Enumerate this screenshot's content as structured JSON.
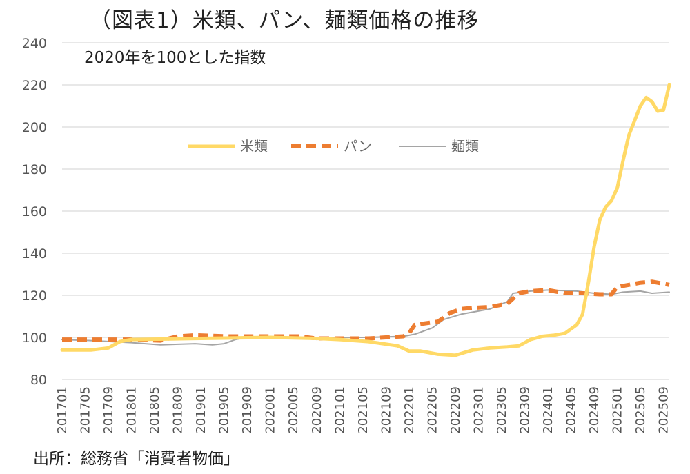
{
  "chart_data": {
    "type": "line",
    "title": "（図表1）米類、パン、麺類価格の推移",
    "subtitle": "2020年を100とした指数",
    "source": "出所：総務省「消費者物価」",
    "ylim": [
      80,
      240
    ],
    "yticks": [
      80,
      100,
      120,
      140,
      160,
      180,
      200,
      220,
      240
    ],
    "grid": "horizontal",
    "legend_position": "top-center",
    "x_start": "2017-01",
    "x_end": "2025-10",
    "xtick_labels": [
      "201701",
      "201705",
      "201709",
      "201801",
      "201805",
      "201809",
      "201901",
      "201905",
      "201909",
      "202001",
      "202005",
      "202009",
      "202101",
      "202105",
      "202109",
      "202201",
      "202205",
      "202209",
      "202301",
      "202305",
      "202309",
      "202401",
      "202405",
      "202409",
      "202501",
      "202505",
      "202509"
    ],
    "series": [
      {
        "name": "米類",
        "color": "#FFD966",
        "style": "solid-thick",
        "points": [
          [
            "2017-01",
            94
          ],
          [
            "2017-06",
            94
          ],
          [
            "2017-09",
            95
          ],
          [
            "2017-11",
            98
          ],
          [
            "2018-01",
            99
          ],
          [
            "2019-01",
            99.5
          ],
          [
            "2020-01",
            100
          ],
          [
            "2020-09",
            99.5
          ],
          [
            "2021-01",
            99
          ],
          [
            "2021-06",
            98
          ],
          [
            "2021-11",
            96
          ],
          [
            "2022-01",
            93.5
          ],
          [
            "2022-03",
            93.5
          ],
          [
            "2022-06",
            92
          ],
          [
            "2022-09",
            91.5
          ],
          [
            "2022-12",
            94
          ],
          [
            "2023-03",
            95
          ],
          [
            "2023-06",
            95.5
          ],
          [
            "2023-08",
            96
          ],
          [
            "2023-10",
            99
          ],
          [
            "2023-12",
            100.5
          ],
          [
            "2024-02",
            101
          ],
          [
            "2024-04",
            102
          ],
          [
            "2024-06",
            106
          ],
          [
            "2024-07",
            111
          ],
          [
            "2024-08",
            126
          ],
          [
            "2024-09",
            143
          ],
          [
            "2024-10",
            156
          ],
          [
            "2024-11",
            162
          ],
          [
            "2024-12",
            165
          ],
          [
            "2025-01",
            171
          ],
          [
            "2025-02",
            184
          ],
          [
            "2025-03",
            196
          ],
          [
            "2025-04",
            203
          ],
          [
            "2025-05",
            210
          ],
          [
            "2025-06",
            214
          ],
          [
            "2025-07",
            212
          ],
          [
            "2025-08",
            207.5
          ],
          [
            "2025-09",
            208
          ],
          [
            "2025-10",
            220
          ]
        ]
      },
      {
        "name": "パン",
        "color": "#ED7D31",
        "style": "dashed-thick",
        "points": [
          [
            "2017-01",
            99
          ],
          [
            "2018-01",
            99
          ],
          [
            "2018-06",
            98.5
          ],
          [
            "2018-09",
            100.5
          ],
          [
            "2018-12",
            101
          ],
          [
            "2019-06",
            100.5
          ],
          [
            "2019-12",
            100.5
          ],
          [
            "2020-06",
            100.5
          ],
          [
            "2020-09",
            99.5
          ],
          [
            "2021-01",
            99.5
          ],
          [
            "2021-06",
            99.5
          ],
          [
            "2021-09",
            100
          ],
          [
            "2021-12",
            100.5
          ],
          [
            "2022-01",
            102
          ],
          [
            "2022-02",
            106
          ],
          [
            "2022-06",
            107.5
          ],
          [
            "2022-08",
            111.5
          ],
          [
            "2022-10",
            113.5
          ],
          [
            "2022-12",
            114
          ],
          [
            "2023-03",
            114.5
          ],
          [
            "2023-06",
            116
          ],
          [
            "2023-08",
            121
          ],
          [
            "2023-10",
            122
          ],
          [
            "2024-01",
            122.5
          ],
          [
            "2024-04",
            121
          ],
          [
            "2024-07",
            121
          ],
          [
            "2024-10",
            120.5
          ],
          [
            "2024-12",
            120.5
          ],
          [
            "2025-01",
            124
          ],
          [
            "2025-03",
            125
          ],
          [
            "2025-05",
            126
          ],
          [
            "2025-07",
            126.5
          ],
          [
            "2025-09",
            125.5
          ],
          [
            "2025-10",
            125
          ]
        ]
      },
      {
        "name": "麺類",
        "color": "#A5A5A5",
        "style": "solid-thin",
        "points": [
          [
            "2017-01",
            99
          ],
          [
            "2017-06",
            98.5
          ],
          [
            "2018-01",
            97.5
          ],
          [
            "2018-06",
            96.5
          ],
          [
            "2018-12",
            97
          ],
          [
            "2019-03",
            96.5
          ],
          [
            "2019-05",
            97
          ],
          [
            "2019-07",
            99
          ],
          [
            "2019-09",
            100
          ],
          [
            "2019-12",
            100
          ],
          [
            "2020-06",
            100
          ],
          [
            "2020-09",
            99
          ],
          [
            "2021-01",
            100
          ],
          [
            "2021-06",
            100
          ],
          [
            "2021-12",
            100.5
          ],
          [
            "2022-02",
            101.5
          ],
          [
            "2022-05",
            104.5
          ],
          [
            "2022-07",
            108.5
          ],
          [
            "2022-10",
            111
          ],
          [
            "2022-12",
            112
          ],
          [
            "2023-03",
            113.5
          ],
          [
            "2023-06",
            117
          ],
          [
            "2023-07",
            121
          ],
          [
            "2023-10",
            122
          ],
          [
            "2024-01",
            122.5
          ],
          [
            "2024-06",
            122
          ],
          [
            "2024-09",
            121
          ],
          [
            "2024-12",
            120.5
          ],
          [
            "2025-02",
            121.5
          ],
          [
            "2025-05",
            122
          ],
          [
            "2025-07",
            121
          ],
          [
            "2025-10",
            121.5
          ]
        ]
      }
    ]
  }
}
